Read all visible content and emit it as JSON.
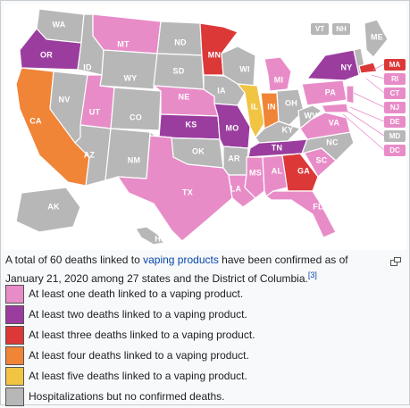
{
  "colors": {
    "one_death": "#e88cc8",
    "two_deaths": "#9b3d9f",
    "three_deaths": "#dc3838",
    "four_deaths": "#f08437",
    "five_deaths": "#f2c444",
    "hospitalizations": "#b7b7b7",
    "background": "#ffffff",
    "link": "#0645ad"
  },
  "state_labels": {
    "WA": "WA",
    "OR": "OR",
    "CA": "CA",
    "NV": "NV",
    "ID": "ID",
    "MT": "MT",
    "WY": "WY",
    "UT": "UT",
    "AZ": "AZ",
    "CO": "CO",
    "NM": "NM",
    "ND": "ND",
    "SD": "SD",
    "NE": "NE",
    "KS": "KS",
    "OK": "OK",
    "TX": "TX",
    "MN": "MN",
    "IA": "IA",
    "MO": "MO",
    "AR": "AR",
    "LA": "LA",
    "WI": "WI",
    "IL": "IL",
    "MI": "MI",
    "IN": "IN",
    "OH": "OH",
    "KY": "KY",
    "TN": "TN",
    "MS": "MS",
    "AL": "AL",
    "GA": "GA",
    "FL": "FL",
    "SC": "SC",
    "NC": "NC",
    "VA": "VA",
    "WV": "WV",
    "PA": "PA",
    "NY": "NY",
    "ME": "ME",
    "AK": "AK",
    "HI": "HI"
  },
  "small_states": {
    "VT": "VT",
    "NH": "NH",
    "MA": "MA",
    "RI": "RI",
    "CT": "CT",
    "NJ": "NJ",
    "DE": "DE",
    "MD": "MD",
    "DC": "DC"
  },
  "caption": {
    "text_before_link": "A total of 60 deaths linked to ",
    "link_text": "vaping products",
    "text_after_link": " have been confirmed as of January 21, 2020 among 27 states and the District of Columbia.",
    "reference": "[3]"
  },
  "magnify_icon": "magnify-clip-icon",
  "legend": [
    {
      "label": "At least one death linked to a vaping product.",
      "color": "#e88cc8"
    },
    {
      "label": "At least two deaths linked to a vaping product.",
      "color": "#9b3d9f"
    },
    {
      "label": "At least three deaths linked to a vaping product.",
      "color": "#dc3838"
    },
    {
      "label": "At least four deaths linked to a vaping product.",
      "color": "#f08437"
    },
    {
      "label": "At least five deaths linked to a vaping product.",
      "color": "#f2c444"
    },
    {
      "label": "Hospitalizations but no confirmed deaths.",
      "color": "#b7b7b7"
    }
  ]
}
